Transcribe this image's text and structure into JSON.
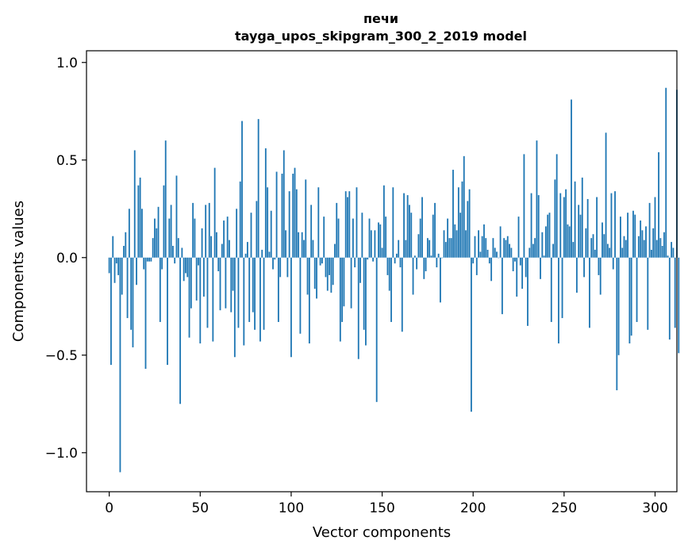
{
  "chart_data": {
    "type": "bar",
    "title_line1": "печи",
    "title_line2": "tayga_upos_skipgram_300_2_2019 model",
    "xlabel": "Vector components",
    "ylabel": "Components values",
    "xlim": [
      -12.5,
      312
    ],
    "ylim": [
      -1.2,
      1.06
    ],
    "xticks": [
      0,
      50,
      100,
      150,
      200,
      250,
      300
    ],
    "xtick_labels": [
      "0",
      "50",
      "100",
      "150",
      "200",
      "250",
      "300"
    ],
    "yticks": [
      -1.0,
      -0.5,
      0.0,
      0.5,
      1.0
    ],
    "ytick_labels": [
      "−1.0",
      "−0.5",
      "0.0",
      "0.5",
      "1.0"
    ],
    "bar_color": "#1f77b4",
    "grid": false,
    "values": [
      -0.08,
      -0.55,
      0.11,
      -0.13,
      -0.03,
      -0.09,
      -1.1,
      -0.19,
      0.06,
      0.13,
      -0.31,
      0.25,
      -0.37,
      -0.46,
      0.55,
      -0.14,
      0.37,
      0.41,
      0.25,
      -0.06,
      -0.57,
      -0.02,
      -0.02,
      -0.02,
      0.1,
      0.2,
      0.15,
      0.26,
      -0.33,
      -0.06,
      0.37,
      0.6,
      -0.55,
      0.2,
      0.27,
      0.06,
      -0.03,
      0.42,
      0.1,
      -0.75,
      0.05,
      -0.12,
      -0.08,
      -0.1,
      -0.41,
      -0.26,
      0.28,
      0.2,
      -0.22,
      -0.04,
      -0.44,
      0.15,
      -0.2,
      0.27,
      -0.36,
      0.28,
      0.11,
      -0.43,
      0.46,
      0.13,
      -0.07,
      -0.27,
      0.07,
      0.19,
      -0.26,
      0.21,
      0.09,
      -0.28,
      -0.17,
      -0.51,
      0.25,
      -0.36,
      0.39,
      0.7,
      -0.45,
      0.02,
      0.08,
      -0.33,
      0.23,
      -0.28,
      -0.37,
      0.29,
      0.71,
      -0.43,
      0.04,
      -0.37,
      0.56,
      0.36,
      0.03,
      0.24,
      -0.06,
      -0.01,
      0.44,
      -0.33,
      -0.1,
      0.43,
      0.55,
      0.14,
      -0.1,
      0.34,
      -0.51,
      0.43,
      0.46,
      0.35,
      0.13,
      -0.39,
      0.13,
      0.09,
      0.4,
      -0.19,
      -0.44,
      0.27,
      0.09,
      -0.16,
      -0.21,
      0.36,
      -0.04,
      -0.03,
      0.21,
      -0.1,
      -0.17,
      -0.09,
      -0.18,
      -0.14,
      0.07,
      0.28,
      0.2,
      -0.43,
      -0.33,
      -0.25,
      0.34,
      0.31,
      0.34,
      -0.26,
      0.2,
      -0.05,
      0.36,
      -0.52,
      -0.13,
      0.23,
      -0.37,
      -0.45,
      -0.01,
      0.2,
      0.14,
      -0.02,
      0.14,
      -0.74,
      0.18,
      0.17,
      0.05,
      0.37,
      0.21,
      -0.09,
      -0.17,
      -0.33,
      0.36,
      -0.03,
      0.02,
      0.09,
      -0.05,
      -0.38,
      0.33,
      0.09,
      0.32,
      0.27,
      0.23,
      -0.19,
      0.01,
      -0.06,
      0.12,
      0.2,
      0.31,
      -0.11,
      -0.07,
      0.1,
      0.09,
      0.01,
      0.22,
      0.28,
      -0.05,
      0.02,
      -0.23,
      0.0,
      0.14,
      0.08,
      0.2,
      0.1,
      0.1,
      0.45,
      0.17,
      0.14,
      0.36,
      0.23,
      0.39,
      0.52,
      0.14,
      0.29,
      0.35,
      -0.79,
      -0.03,
      0.11,
      -0.09,
      0.14,
      0.03,
      0.11,
      0.17,
      0.1,
      0.04,
      -0.03,
      -0.12,
      0.1,
      0.05,
      0.03,
      0.0,
      0.16,
      -0.29,
      0.1,
      0.09,
      0.11,
      0.07,
      0.05,
      -0.07,
      -0.02,
      -0.2,
      0.21,
      -0.04,
      -0.16,
      0.53,
      -0.1,
      -0.35,
      0.05,
      0.33,
      0.07,
      0.1,
      0.6,
      0.32,
      -0.11,
      0.13,
      0.01,
      0.16,
      0.22,
      0.23,
      -0.33,
      0.07,
      0.4,
      0.53,
      -0.44,
      0.33,
      -0.31,
      0.31,
      0.35,
      0.17,
      0.16,
      0.81,
      0.08,
      0.39,
      -0.18,
      0.27,
      0.22,
      0.41,
      -0.1,
      0.15,
      0.3,
      -0.36,
      0.1,
      0.12,
      0.04,
      0.31,
      -0.09,
      -0.19,
      0.18,
      0.12,
      0.64,
      0.07,
      0.05,
      0.33,
      -0.06,
      0.34,
      -0.68,
      -0.5,
      0.21,
      0.05,
      0.11,
      0.09,
      0.23,
      -0.44,
      -0.4,
      0.24,
      0.22,
      -0.33,
      0.11,
      0.19,
      0.14,
      0.09,
      0.16,
      -0.37,
      0.28,
      0.04,
      0.15,
      0.31,
      0.09,
      0.54,
      0.1,
      0.06,
      0.13,
      0.87,
      0.01,
      -0.42,
      0.08,
      0.05,
      -0.36,
      0.86,
      -0.49
    ]
  }
}
